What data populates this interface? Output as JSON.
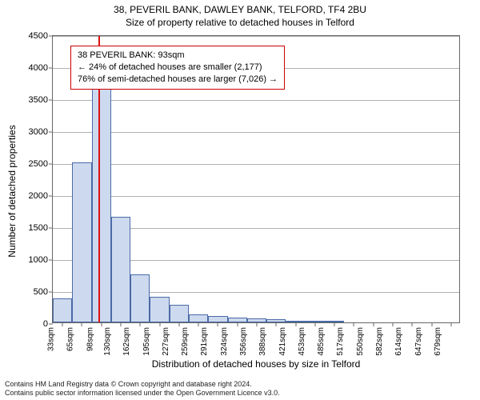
{
  "title_line1": "38, PEVERIL BANK, DAWLEY BANK, TELFORD, TF4 2BU",
  "title_line2": "Size of property relative to detached houses in Telford",
  "chart": {
    "type": "histogram",
    "ylabel": "Number of detached properties",
    "xlabel": "Distribution of detached houses by size in Telford",
    "ylim": [
      0,
      4500
    ],
    "yticks": [
      0,
      500,
      1000,
      1500,
      2000,
      2500,
      3000,
      3500,
      4000,
      4500
    ],
    "xticks": [
      "33sqm",
      "65sqm",
      "98sqm",
      "130sqm",
      "162sqm",
      "195sqm",
      "227sqm",
      "259sqm",
      "291sqm",
      "324sqm",
      "356sqm",
      "388sqm",
      "421sqm",
      "453sqm",
      "485sqm",
      "517sqm",
      "550sqm",
      "582sqm",
      "614sqm",
      "647sqm",
      "679sqm"
    ],
    "bars": [
      370,
      2500,
      4000,
      1650,
      750,
      400,
      280,
      130,
      100,
      80,
      60,
      50,
      30,
      10,
      10,
      0,
      0,
      0,
      0,
      0,
      0
    ],
    "bar_color": "#cdd9ee",
    "bar_border": "#4a6aa8",
    "grid_color": "#b0b0b0",
    "background_color": "#ffffff",
    "marker_value_sqm": 93,
    "marker_color": "#dd1111",
    "annotation": {
      "line1": "38 PEVERIL BANK: 93sqm",
      "line2": "← 24% of detached houses are smaller (2,177)",
      "line3": "76% of semi-detached houses are larger (7,026) →"
    },
    "label_fontsize": 12,
    "tick_fontsize": 11
  },
  "footer_line1": "Contains HM Land Registry data © Crown copyright and database right 2024.",
  "footer_line2": "Contains public sector information licensed under the Open Government Licence v3.0."
}
